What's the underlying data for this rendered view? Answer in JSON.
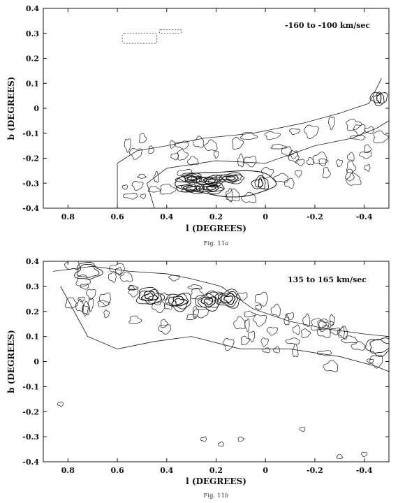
{
  "chart_data": [
    {
      "type": "contour",
      "title": "",
      "annotation": "-160 to -100 km/sec",
      "xlabel": "l (DEGREES)",
      "ylabel": "b (DEGREES)",
      "xlim": [
        0.9,
        -0.5
      ],
      "ylim": [
        -0.4,
        0.4
      ],
      "xticks": [
        "0.8",
        "0.6",
        "0.4",
        "0.2",
        "0",
        "-0.2",
        "-0.4"
      ],
      "yticks": [
        "0.4",
        "0.3",
        "0.2",
        "0.1",
        "0",
        "-0.1",
        "-0.2",
        "-0.3",
        "-0.4"
      ],
      "caption": "Fig. 11a",
      "peaks": [
        {
          "l": 0.3,
          "b": -0.28
        },
        {
          "l": 0.22,
          "b": -0.29
        },
        {
          "l": 0.14,
          "b": -0.28
        },
        {
          "l": 0.3,
          "b": -0.32
        },
        {
          "l": 0.22,
          "b": -0.32
        },
        {
          "l": 0.02,
          "b": -0.3
        },
        {
          "l": -0.46,
          "b": 0.04
        }
      ]
    },
    {
      "type": "contour",
      "title": "",
      "annotation": "135 to 165 km/sec",
      "xlabel": "l (DEGREES)",
      "ylabel": "b (DEGREES)",
      "xlim": [
        0.9,
        -0.5
      ],
      "ylim": [
        -0.4,
        0.4
      ],
      "xticks": [
        "0.8",
        "0.6",
        "0.4",
        "0.2",
        "0",
        "-0.2",
        "-0.4"
      ],
      "yticks": [
        "0.4",
        "0.3",
        "0.2",
        "0.1",
        "0",
        "-0.1",
        "-0.2",
        "-0.3",
        "-0.4"
      ],
      "caption": "Fig. 11b",
      "peaks": [
        {
          "l": 0.47,
          "b": 0.26
        },
        {
          "l": 0.35,
          "b": 0.24
        },
        {
          "l": 0.23,
          "b": 0.24
        },
        {
          "l": 0.15,
          "b": 0.25
        },
        {
          "l": 0.72,
          "b": 0.36
        },
        {
          "l": -0.46,
          "b": 0.06
        }
      ]
    }
  ]
}
